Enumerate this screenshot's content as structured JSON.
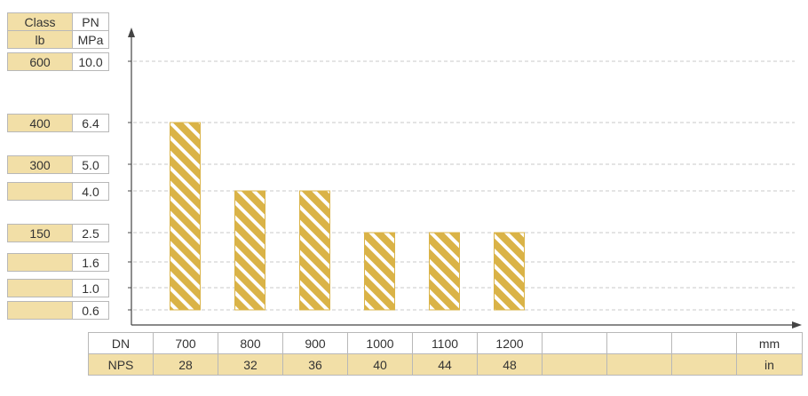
{
  "colors": {
    "bar": "#dab347",
    "bar_stripe": "#ffffff",
    "table_fill": "#f2dfa7",
    "grid": "#c8c8c8",
    "axis": "#444444"
  },
  "header": {
    "class_label": "Class",
    "class_unit": "lb",
    "pn_label": "PN",
    "pn_unit": "MPa"
  },
  "chart_data": {
    "type": "bar",
    "categories": [
      "700",
      "800",
      "900",
      "1000",
      "1100",
      "1200"
    ],
    "nps": [
      "28",
      "32",
      "36",
      "40",
      "44",
      "48"
    ],
    "values": [
      6.4,
      4.0,
      4.0,
      2.5,
      2.5,
      2.5
    ],
    "ylabel_unit": "MPa",
    "x_row_label": "DN",
    "x_unit": "mm",
    "nps_row_label": "NPS",
    "nps_unit": "in",
    "y_levels": [
      {
        "pn": "10.0",
        "cls": "600"
      },
      {
        "pn": "6.4",
        "cls": "400"
      },
      {
        "pn": "5.0",
        "cls": "300"
      },
      {
        "pn": "4.0",
        "cls": ""
      },
      {
        "pn": "2.5",
        "cls": "150"
      },
      {
        "pn": "1.6",
        "cls": ""
      },
      {
        "pn": "1.0",
        "cls": ""
      },
      {
        "pn": "0.6",
        "cls": ""
      }
    ],
    "grid": true
  }
}
